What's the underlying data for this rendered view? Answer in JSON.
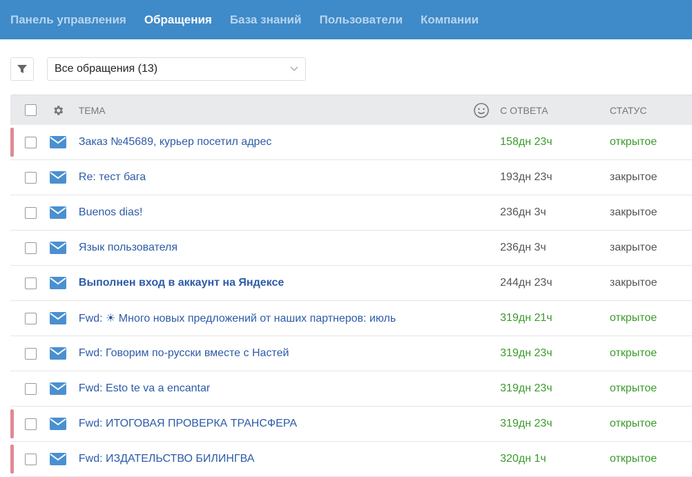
{
  "nav": [
    {
      "label": "Панель управления",
      "active": false
    },
    {
      "label": "Обращения",
      "active": true
    },
    {
      "label": "База знаний",
      "active": false
    },
    {
      "label": "Пользователи",
      "active": false
    },
    {
      "label": "Компании",
      "active": false
    }
  ],
  "filter": {
    "selected": "Все обращения (13)"
  },
  "columns": {
    "topic": "ТЕМА",
    "since_answer": "С ОТВЕТА",
    "status": "СТАТУС"
  },
  "colors": {
    "accent": "#3f8ac8",
    "open": "#3a9a2a",
    "flag": "#e08a93"
  },
  "rows": [
    {
      "topic": "Заказ №45689, курьер посетил адрес",
      "since": "158дн 23ч",
      "status": "открытое",
      "open": true,
      "flag": true,
      "bold": false
    },
    {
      "topic": "Re: тест бага",
      "since": "193дн 23ч",
      "status": "закрытое",
      "open": false,
      "flag": false,
      "bold": false
    },
    {
      "topic": "Buenos dias!",
      "since": "236дн 3ч",
      "status": "закрытое",
      "open": false,
      "flag": false,
      "bold": false
    },
    {
      "topic": "Язык пользователя",
      "since": "236дн 3ч",
      "status": "закрытое",
      "open": false,
      "flag": false,
      "bold": false
    },
    {
      "topic": "Выполнен вход в аккаунт на Яндексе",
      "since": "244дн 23ч",
      "status": "закрытое",
      "open": false,
      "flag": false,
      "bold": true
    },
    {
      "topic": "Fwd: ☀ Много новых предложений от наших партнеров: июль",
      "since": "319дн 21ч",
      "status": "открытое",
      "open": true,
      "flag": false,
      "bold": false
    },
    {
      "topic": "Fwd: Говорим по-русски вместе с Настей",
      "since": "319дн 23ч",
      "status": "открытое",
      "open": true,
      "flag": false,
      "bold": false
    },
    {
      "topic": "Fwd: Esto te va a encantar",
      "since": "319дн 23ч",
      "status": "открытое",
      "open": true,
      "flag": false,
      "bold": false
    },
    {
      "topic": "Fwd: ИТОГОВАЯ ПРОВЕРКА ТРАНСФЕРА",
      "since": "319дн 23ч",
      "status": "открытое",
      "open": true,
      "flag": true,
      "bold": false
    },
    {
      "topic": "Fwd: ИЗДАТЕЛЬСТВО БИЛИНГВА",
      "since": "320дн 1ч",
      "status": "открытое",
      "open": true,
      "flag": true,
      "bold": false
    }
  ]
}
